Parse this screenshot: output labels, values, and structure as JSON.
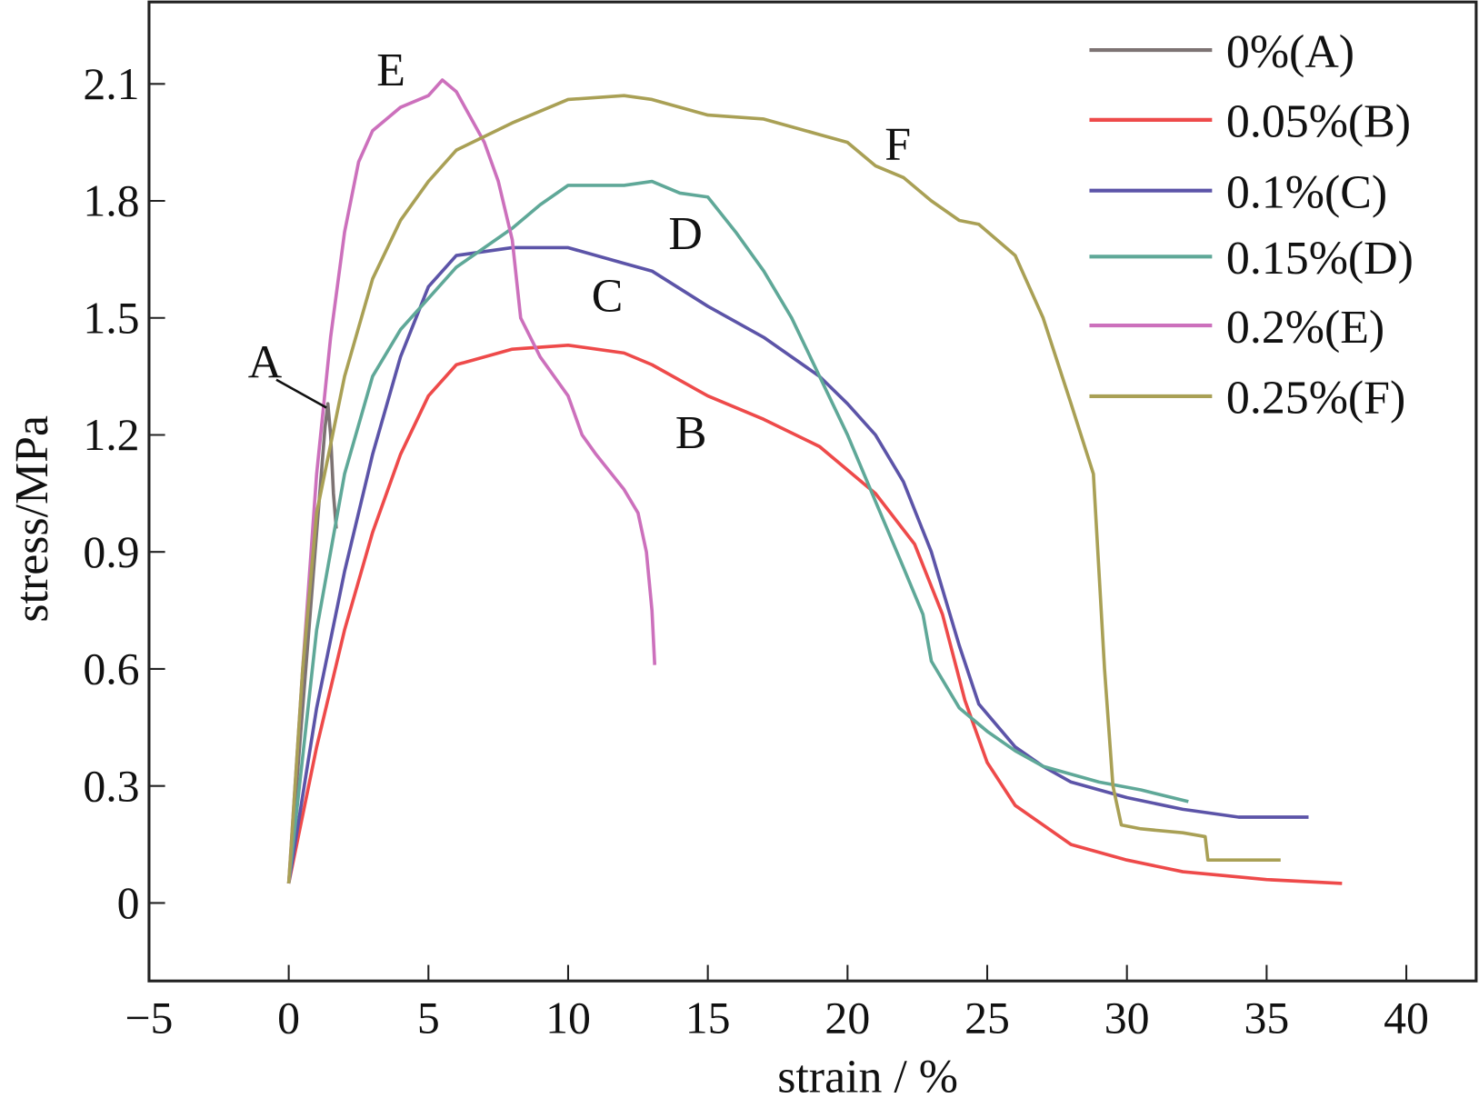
{
  "chart_data": {
    "type": "line",
    "title": "",
    "xlabel": "strain / %",
    "ylabel": "stress/MPa",
    "xlim": [
      -5,
      42.5
    ],
    "ylim": [
      -0.2,
      2.31
    ],
    "xticks": [
      -5,
      0,
      5,
      10,
      15,
      20,
      25,
      30,
      35,
      40
    ],
    "xtick_labels": [
      "−5",
      "0",
      "5",
      "10",
      "15",
      "20",
      "25",
      "30",
      "35",
      "40"
    ],
    "yticks": [
      0,
      0.3,
      0.6,
      0.9,
      1.2,
      1.5,
      1.8,
      2.1
    ],
    "ytick_labels": [
      "0",
      "0.3",
      "0.6",
      "0.9",
      "1.2",
      "1.5",
      "1.8",
      "2.1"
    ],
    "grid": false,
    "legend_position": "top-right",
    "series": [
      {
        "name": "0%(A)",
        "color": "#7d7373",
        "points": [
          [
            0,
            0.05
          ],
          [
            0.5,
            0.5
          ],
          [
            1,
            0.95
          ],
          [
            1.3,
            1.22
          ],
          [
            1.4,
            1.28
          ],
          [
            1.5,
            1.2
          ],
          [
            1.6,
            1.05
          ],
          [
            1.7,
            0.96
          ]
        ]
      },
      {
        "name": "0.05%(B)",
        "color": "#ee4a4a",
        "points": [
          [
            0,
            0.05
          ],
          [
            1,
            0.4
          ],
          [
            2,
            0.7
          ],
          [
            3,
            0.95
          ],
          [
            4,
            1.15
          ],
          [
            5,
            1.3
          ],
          [
            6,
            1.38
          ],
          [
            8,
            1.42
          ],
          [
            10,
            1.43
          ],
          [
            12,
            1.41
          ],
          [
            13,
            1.38
          ],
          [
            15,
            1.3
          ],
          [
            17,
            1.24
          ],
          [
            19,
            1.17
          ],
          [
            21,
            1.05
          ],
          [
            22.4,
            0.92
          ],
          [
            23.4,
            0.74
          ],
          [
            24.2,
            0.52
          ],
          [
            25,
            0.36
          ],
          [
            26,
            0.25
          ],
          [
            28,
            0.15
          ],
          [
            30,
            0.11
          ],
          [
            32,
            0.08
          ],
          [
            35,
            0.06
          ],
          [
            37.7,
            0.05
          ]
        ]
      },
      {
        "name": "0.1%(C)",
        "color": "#5c54a8",
        "points": [
          [
            0,
            0.05
          ],
          [
            1,
            0.5
          ],
          [
            2,
            0.85
          ],
          [
            3,
            1.15
          ],
          [
            4,
            1.4
          ],
          [
            5,
            1.58
          ],
          [
            6,
            1.66
          ],
          [
            8,
            1.68
          ],
          [
            10,
            1.68
          ],
          [
            12,
            1.64
          ],
          [
            13,
            1.62
          ],
          [
            15,
            1.53
          ],
          [
            17,
            1.45
          ],
          [
            19,
            1.35
          ],
          [
            20,
            1.28
          ],
          [
            21,
            1.2
          ],
          [
            22,
            1.08
          ],
          [
            23,
            0.9
          ],
          [
            24,
            0.66
          ],
          [
            24.7,
            0.51
          ],
          [
            26,
            0.4
          ],
          [
            27,
            0.35
          ],
          [
            28,
            0.31
          ],
          [
            30,
            0.27
          ],
          [
            32,
            0.24
          ],
          [
            34,
            0.22
          ],
          [
            36.5,
            0.22
          ]
        ]
      },
      {
        "name": "0.15%(D)",
        "color": "#5fa898",
        "points": [
          [
            0,
            0.05
          ],
          [
            1,
            0.7
          ],
          [
            2,
            1.1
          ],
          [
            3,
            1.35
          ],
          [
            4,
            1.47
          ],
          [
            5,
            1.55
          ],
          [
            6,
            1.63
          ],
          [
            8,
            1.73
          ],
          [
            9,
            1.79
          ],
          [
            10,
            1.84
          ],
          [
            12,
            1.84
          ],
          [
            13,
            1.85
          ],
          [
            14,
            1.82
          ],
          [
            15,
            1.81
          ],
          [
            16,
            1.72
          ],
          [
            17,
            1.62
          ],
          [
            18,
            1.5
          ],
          [
            19,
            1.35
          ],
          [
            20,
            1.2
          ],
          [
            21,
            1.03
          ],
          [
            22,
            0.86
          ],
          [
            22.7,
            0.74
          ],
          [
            23,
            0.62
          ],
          [
            24,
            0.5
          ],
          [
            25,
            0.44
          ],
          [
            26,
            0.39
          ],
          [
            27,
            0.35
          ],
          [
            29,
            0.31
          ],
          [
            30.5,
            0.29
          ],
          [
            32.2,
            0.26
          ]
        ]
      },
      {
        "name": "0.2%(E)",
        "color": "#cc70bc",
        "points": [
          [
            0,
            0.05
          ],
          [
            0.5,
            0.6
          ],
          [
            1,
            1.1
          ],
          [
            1.5,
            1.45
          ],
          [
            2,
            1.72
          ],
          [
            2.5,
            1.9
          ],
          [
            3,
            1.98
          ],
          [
            4,
            2.04
          ],
          [
            5,
            2.07
          ],
          [
            5.5,
            2.11
          ],
          [
            6,
            2.08
          ],
          [
            7,
            1.95
          ],
          [
            7.5,
            1.85
          ],
          [
            8,
            1.7
          ],
          [
            8.3,
            1.5
          ],
          [
            9,
            1.4
          ],
          [
            10,
            1.3
          ],
          [
            10.5,
            1.2
          ],
          [
            11,
            1.15
          ],
          [
            12,
            1.06
          ],
          [
            12.5,
            1.0
          ],
          [
            12.8,
            0.9
          ],
          [
            13,
            0.75
          ],
          [
            13.1,
            0.61
          ]
        ]
      },
      {
        "name": "0.25%(F)",
        "color": "#a9a055",
        "points": [
          [
            0,
            0.05
          ],
          [
            0.5,
            0.6
          ],
          [
            1,
            1.0
          ],
          [
            2,
            1.35
          ],
          [
            3,
            1.6
          ],
          [
            4,
            1.75
          ],
          [
            5,
            1.85
          ],
          [
            6,
            1.93
          ],
          [
            8,
            2.0
          ],
          [
            10,
            2.06
          ],
          [
            12,
            2.07
          ],
          [
            13,
            2.06
          ],
          [
            15,
            2.02
          ],
          [
            17,
            2.01
          ],
          [
            19,
            1.97
          ],
          [
            20,
            1.95
          ],
          [
            21,
            1.89
          ],
          [
            22,
            1.86
          ],
          [
            23,
            1.8
          ],
          [
            24,
            1.75
          ],
          [
            24.7,
            1.74
          ],
          [
            26,
            1.66
          ],
          [
            27,
            1.5
          ],
          [
            28,
            1.28
          ],
          [
            28.8,
            1.1
          ],
          [
            29.2,
            0.6
          ],
          [
            29.5,
            0.3
          ],
          [
            29.8,
            0.2
          ],
          [
            30.5,
            0.19
          ],
          [
            32,
            0.18
          ],
          [
            32.8,
            0.17
          ],
          [
            32.9,
            0.11
          ],
          [
            35.5,
            0.11
          ]
        ]
      }
    ],
    "annotations": [
      {
        "text": "A",
        "x": -0.85,
        "y": 1.39,
        "arrow_to": [
          1.35,
          1.27
        ]
      },
      {
        "text": "B",
        "x": 14.4,
        "y": 1.21
      },
      {
        "text": "C",
        "x": 11.4,
        "y": 1.56
      },
      {
        "text": "D",
        "x": 14.2,
        "y": 1.72
      },
      {
        "text": "E",
        "x": 3.66,
        "y": 2.14
      },
      {
        "text": "F",
        "x": 21.8,
        "y": 1.95
      }
    ]
  }
}
